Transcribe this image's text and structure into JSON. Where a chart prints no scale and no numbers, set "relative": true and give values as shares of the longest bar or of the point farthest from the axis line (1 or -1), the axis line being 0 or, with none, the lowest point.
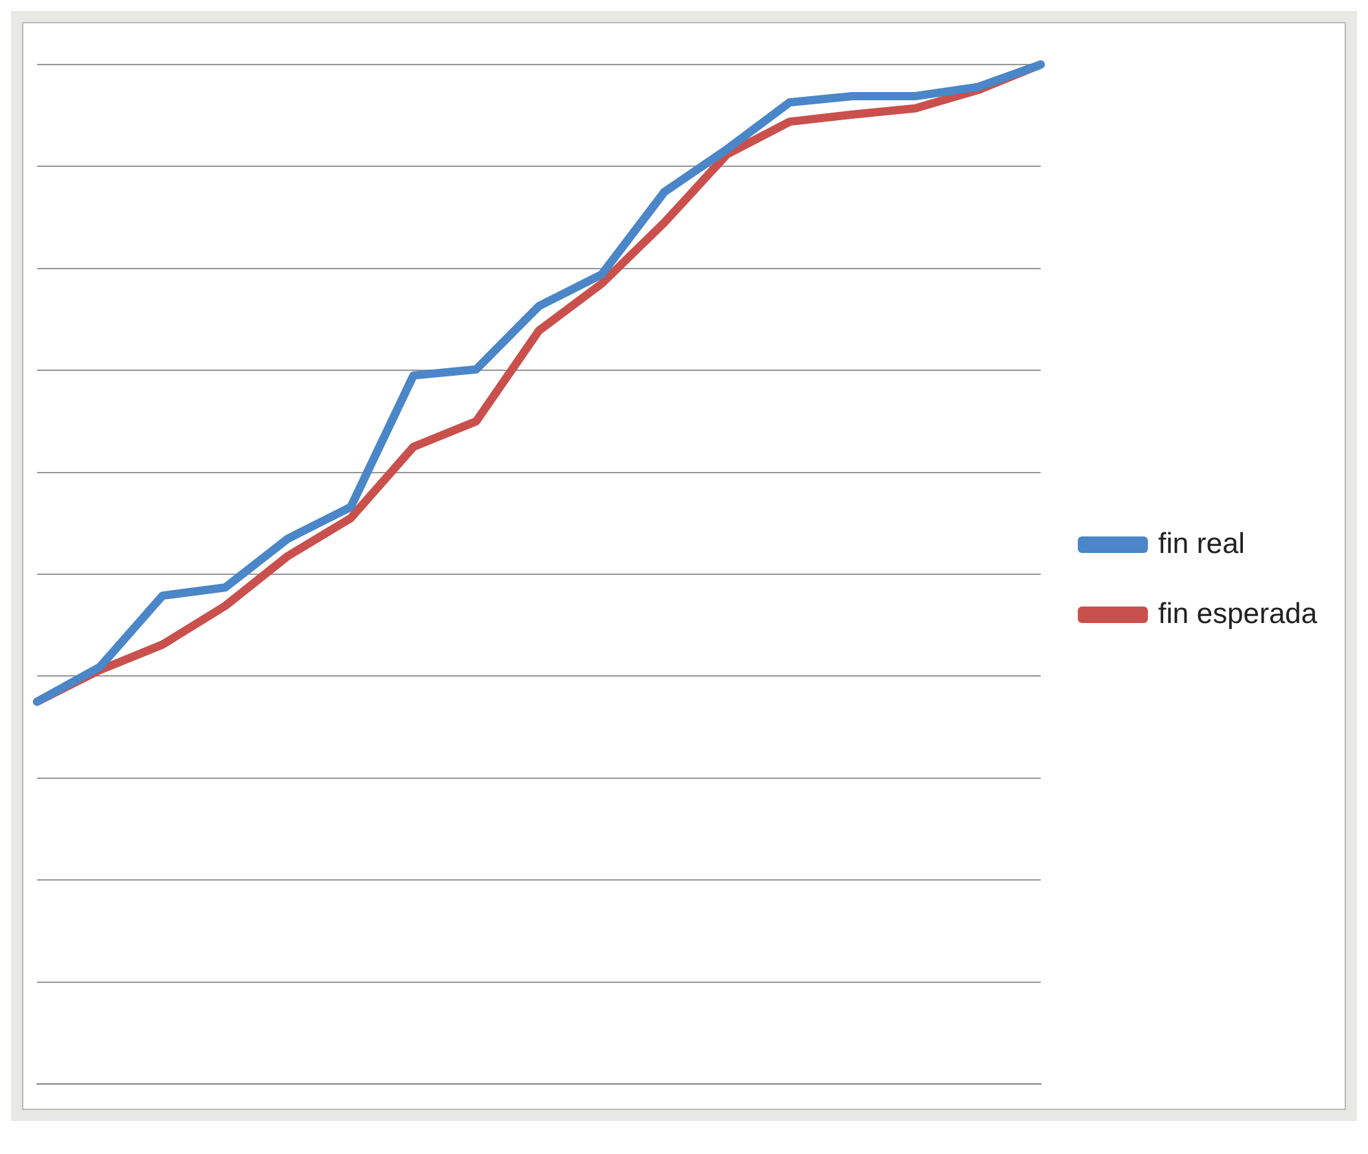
{
  "chart_data": {
    "type": "line",
    "relative": true,
    "categories": [
      null,
      null,
      null,
      null,
      null,
      null,
      null,
      null,
      null,
      null,
      null,
      null,
      null,
      null,
      null,
      null,
      null
    ],
    "series": [
      {
        "name": "fin real",
        "color": "#4a86c8",
        "values": [
          0.375,
          0.409,
          0.479,
          0.487,
          0.535,
          0.566,
          0.695,
          0.701,
          0.763,
          0.794,
          0.875,
          0.917,
          0.963,
          0.969,
          0.969,
          0.978,
          1
        ]
      },
      {
        "name": "fin esperada",
        "color": "#c9504c",
        "values": [
          0.375,
          0.406,
          0.431,
          0.469,
          0.518,
          0.555,
          0.625,
          0.65,
          0.739,
          0.785,
          0.845,
          0.912,
          0.944,
          0.951,
          0.957,
          0.975,
          1
        ]
      }
    ],
    "grid": "y",
    "legend": "right",
    "marker": "none",
    "line_style": "solid"
  }
}
